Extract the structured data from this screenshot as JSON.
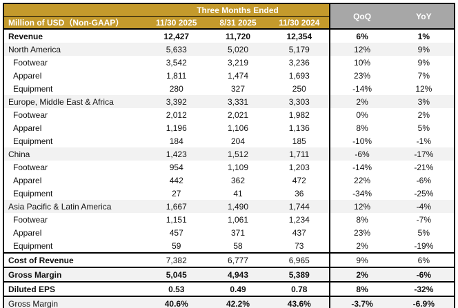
{
  "table_header": {
    "unit_label": "Million of USD（Non-GAAP）",
    "period_group_label": "Three Months Ended",
    "period_columns": [
      "11/30 2025",
      "8/31 2025",
      "11/30 2024"
    ],
    "change_columns": [
      "QoQ",
      "YoY"
    ]
  },
  "colors": {
    "header_gold": "#C49A2C",
    "header_gray": "#A7A7A7",
    "row_stripe": "#F2F2F2",
    "border": "#000000",
    "header_text": "#FFFFFF"
  },
  "rows": [
    {
      "label": "Revenue",
      "values": [
        "12,427",
        "11,720",
        "12,354"
      ],
      "qoq": "6%",
      "yoy": "1%",
      "indent": 0,
      "shaded": false,
      "bold_label": true,
      "bold_values": true,
      "top_border": false
    },
    {
      "label": "North America",
      "values": [
        "5,633",
        "5,020",
        "5,179"
      ],
      "qoq": "12%",
      "yoy": "9%",
      "indent": 0,
      "shaded": true,
      "bold_label": false,
      "bold_values": false,
      "top_border": false
    },
    {
      "label": "Footwear",
      "values": [
        "3,542",
        "3,219",
        "3,236"
      ],
      "qoq": "10%",
      "yoy": "9%",
      "indent": 1,
      "shaded": false,
      "bold_label": false,
      "bold_values": false,
      "top_border": false
    },
    {
      "label": "Apparel",
      "values": [
        "1,811",
        "1,474",
        "1,693"
      ],
      "qoq": "23%",
      "yoy": "7%",
      "indent": 1,
      "shaded": false,
      "bold_label": false,
      "bold_values": false,
      "top_border": false
    },
    {
      "label": "Equipment",
      "values": [
        "280",
        "327",
        "250"
      ],
      "qoq": "-14%",
      "yoy": "12%",
      "indent": 1,
      "shaded": false,
      "bold_label": false,
      "bold_values": false,
      "top_border": false
    },
    {
      "label": "Europe, Middle East & Africa",
      "values": [
        "3,392",
        "3,331",
        "3,303"
      ],
      "qoq": "2%",
      "yoy": "3%",
      "indent": 0,
      "shaded": true,
      "bold_label": false,
      "bold_values": false,
      "top_border": false
    },
    {
      "label": "Footwear",
      "values": [
        "2,012",
        "2,021",
        "1,982"
      ],
      "qoq": "0%",
      "yoy": "2%",
      "indent": 1,
      "shaded": false,
      "bold_label": false,
      "bold_values": false,
      "top_border": false
    },
    {
      "label": "Apparel",
      "values": [
        "1,196",
        "1,106",
        "1,136"
      ],
      "qoq": "8%",
      "yoy": "5%",
      "indent": 1,
      "shaded": false,
      "bold_label": false,
      "bold_values": false,
      "top_border": false
    },
    {
      "label": "Equipment",
      "values": [
        "184",
        "204",
        "185"
      ],
      "qoq": "-10%",
      "yoy": "-1%",
      "indent": 1,
      "shaded": false,
      "bold_label": false,
      "bold_values": false,
      "top_border": false
    },
    {
      "label": "China",
      "values": [
        "1,423",
        "1,512",
        "1,711"
      ],
      "qoq": "-6%",
      "yoy": "-17%",
      "indent": 0,
      "shaded": true,
      "bold_label": false,
      "bold_values": false,
      "top_border": false
    },
    {
      "label": "Footwear",
      "values": [
        "954",
        "1,109",
        "1,203"
      ],
      "qoq": "-14%",
      "yoy": "-21%",
      "indent": 1,
      "shaded": false,
      "bold_label": false,
      "bold_values": false,
      "top_border": false
    },
    {
      "label": "Apparel",
      "values": [
        "442",
        "362",
        "472"
      ],
      "qoq": "22%",
      "yoy": "-6%",
      "indent": 1,
      "shaded": false,
      "bold_label": false,
      "bold_values": false,
      "top_border": false
    },
    {
      "label": "Equipment",
      "values": [
        "27",
        "41",
        "36"
      ],
      "qoq": "-34%",
      "yoy": "-25%",
      "indent": 1,
      "shaded": false,
      "bold_label": false,
      "bold_values": false,
      "top_border": false
    },
    {
      "label": "Asia Pacific & Latin America",
      "values": [
        "1,667",
        "1,490",
        "1,744"
      ],
      "qoq": "12%",
      "yoy": "-4%",
      "indent": 0,
      "shaded": true,
      "bold_label": false,
      "bold_values": false,
      "top_border": false
    },
    {
      "label": "Footwear",
      "values": [
        "1,151",
        "1,061",
        "1,234"
      ],
      "qoq": "8%",
      "yoy": "-7%",
      "indent": 1,
      "shaded": false,
      "bold_label": false,
      "bold_values": false,
      "top_border": false
    },
    {
      "label": "Apparel",
      "values": [
        "457",
        "371",
        "437"
      ],
      "qoq": "23%",
      "yoy": "5%",
      "indent": 1,
      "shaded": false,
      "bold_label": false,
      "bold_values": false,
      "top_border": false
    },
    {
      "label": "Equipment",
      "values": [
        "59",
        "58",
        "73"
      ],
      "qoq": "2%",
      "yoy": "-19%",
      "indent": 1,
      "shaded": false,
      "bold_label": false,
      "bold_values": false,
      "top_border": false
    },
    {
      "label": "Cost of Revenue",
      "values": [
        "7,382",
        "6,777",
        "6,965"
      ],
      "qoq": "9%",
      "yoy": "6%",
      "indent": 0,
      "shaded": false,
      "bold_label": true,
      "bold_values": false,
      "top_border": true
    },
    {
      "label": "Gross Margin",
      "values": [
        "5,045",
        "4,943",
        "5,389"
      ],
      "qoq": "2%",
      "yoy": "-6%",
      "indent": 0,
      "shaded": true,
      "bold_label": true,
      "bold_values": true,
      "top_border": true
    },
    {
      "label": "Diluted EPS",
      "values": [
        "0.53",
        "0.49",
        "0.78"
      ],
      "qoq": "8%",
      "yoy": "-32%",
      "indent": 0,
      "shaded": false,
      "bold_label": true,
      "bold_values": true,
      "top_border": true
    },
    {
      "label": "Gross Margin",
      "values": [
        "40.6%",
        "42.2%",
        "43.6%"
      ],
      "qoq": "-3.7%",
      "yoy": "-6.9%",
      "indent": 0,
      "shaded": true,
      "bold_label": false,
      "bold_values": true,
      "top_border": true
    }
  ]
}
